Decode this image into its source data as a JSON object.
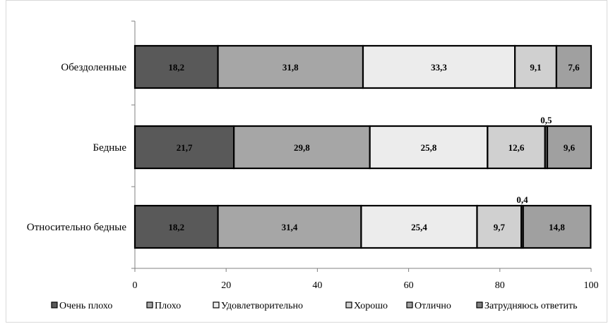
{
  "chart_data": {
    "type": "bar",
    "orientation": "horizontal",
    "stacked": true,
    "categories": [
      "Обездоленные",
      "Бедные",
      "Относительно бедные"
    ],
    "series": [
      {
        "name": "Очень плохо",
        "values": [
          18.2,
          21.7,
          18.2
        ],
        "labels": [
          "18,2",
          "21,7",
          "18,2"
        ],
        "color": "#595959"
      },
      {
        "name": "Плохо",
        "values": [
          31.8,
          29.8,
          31.4
        ],
        "labels": [
          "31,8",
          "29,8",
          "31,4"
        ],
        "color": "#a6a6a6"
      },
      {
        "name": "Удовлетворительно",
        "values": [
          33.3,
          25.8,
          25.4
        ],
        "labels": [
          "33,3",
          "25,8",
          "25,4"
        ],
        "color": "#ececec"
      },
      {
        "name": "Хорошо",
        "values": [
          9.1,
          12.6,
          9.7
        ],
        "labels": [
          "9,1",
          "12,6",
          "9,7"
        ],
        "color": "#d0d0d0"
      },
      {
        "name": "Затрудняюсь ответить",
        "values": [
          0,
          0.5,
          0.4
        ],
        "labels": [
          "",
          "0,5",
          "0,4"
        ],
        "color": "#7f7f7f"
      },
      {
        "name": "Отлично",
        "values": [
          7.6,
          9.6,
          14.8
        ],
        "labels": [
          "7,6",
          "9,6",
          "14,8"
        ],
        "color": "#a0a0a0"
      }
    ],
    "xlim": [
      0,
      100
    ],
    "xticks": [
      0,
      20,
      40,
      60,
      80,
      100
    ],
    "xtick_labels": [
      "0",
      "20",
      "40",
      "60",
      "80",
      "100"
    ],
    "grid": false,
    "legend_position": "bottom",
    "legend_order": [
      "Очень плохо",
      "Плохо",
      "Удовлетворительно",
      "Хорошо",
      "Отлично",
      "Затрудняюсь ответить"
    ]
  }
}
